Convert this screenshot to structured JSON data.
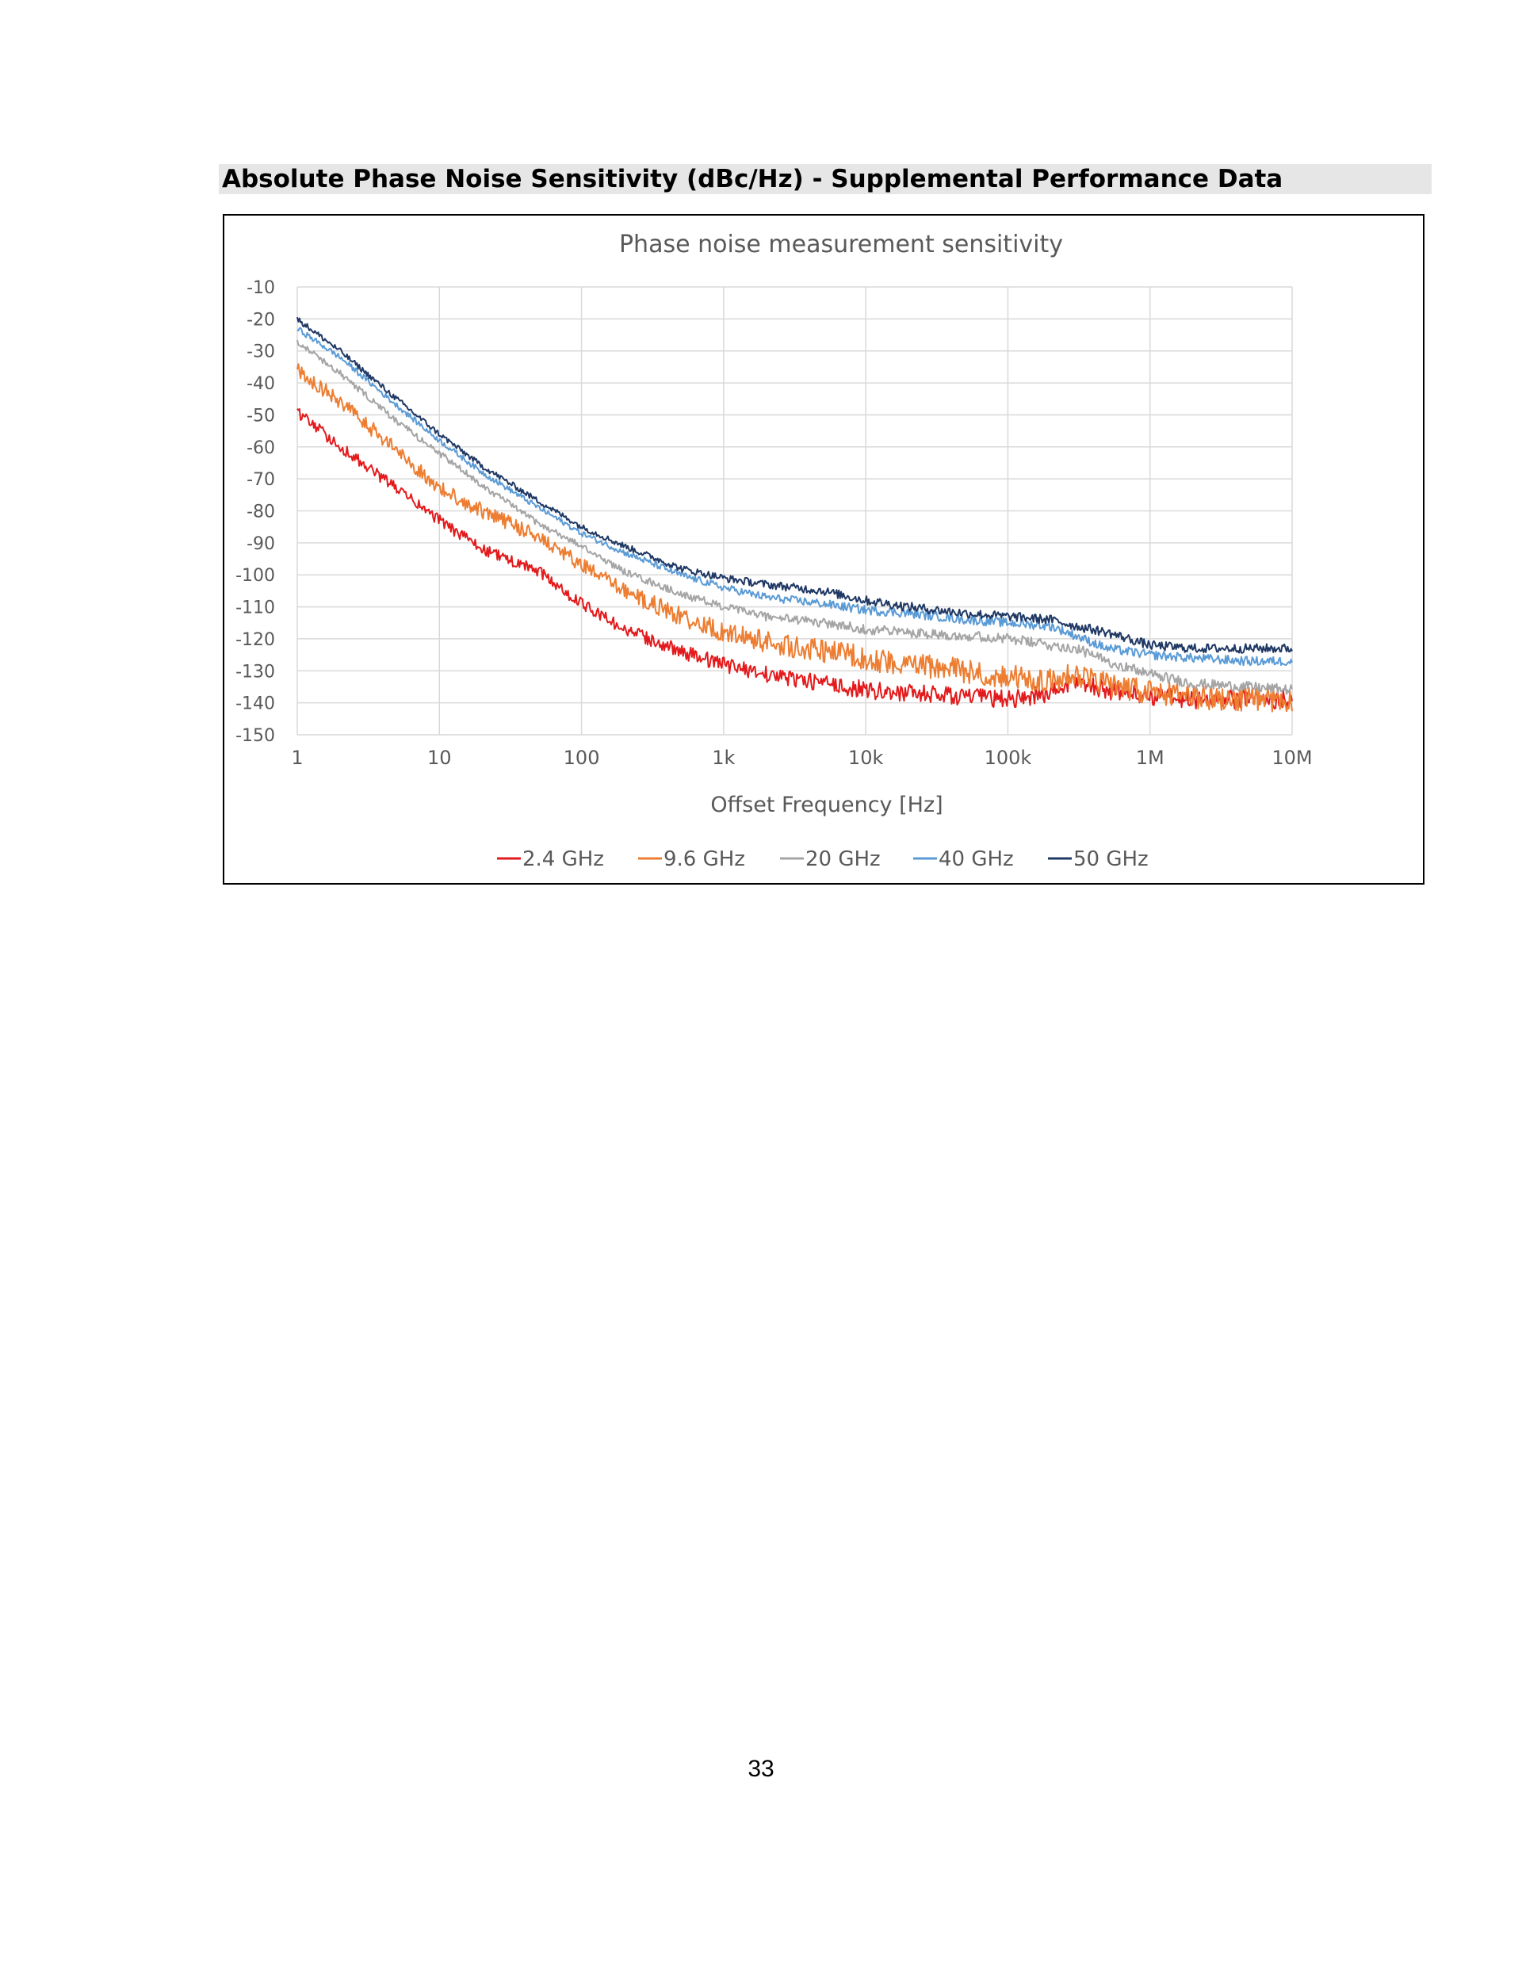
{
  "document": {
    "section_heading": "Absolute Phase Noise Sensitivity (dBc/Hz) - Supplemental Performance Data",
    "page_number": "33"
  },
  "chart_data": {
    "type": "line",
    "title": "Phase noise measurement sensitivity",
    "xlabel": "Offset Frequency [Hz]",
    "ylabel": "",
    "x_scale": "log",
    "xlim": [
      1,
      10000000
    ],
    "ylim": [
      -150,
      -10
    ],
    "x_ticks": [
      {
        "value": 1,
        "label": "1"
      },
      {
        "value": 10,
        "label": "10"
      },
      {
        "value": 100,
        "label": "100"
      },
      {
        "value": 1000,
        "label": "1k"
      },
      {
        "value": 10000,
        "label": "10k"
      },
      {
        "value": 100000,
        "label": "100k"
      },
      {
        "value": 1000000,
        "label": "1M"
      },
      {
        "value": 10000000,
        "label": "10M"
      }
    ],
    "y_ticks": [
      -10,
      -20,
      -30,
      -40,
      -50,
      -60,
      -70,
      -80,
      -90,
      -100,
      -110,
      -120,
      -130,
      -140,
      -150
    ],
    "grid": true,
    "legend_position": "bottom",
    "series": [
      {
        "name": "2.4 GHz",
        "color": "#e31a1c",
        "x": [
          1,
          2,
          5,
          10,
          20,
          50,
          100,
          200,
          500,
          1000,
          2000,
          5000,
          10000,
          20000,
          50000,
          100000,
          200000,
          300000,
          500000,
          1000000,
          2000000,
          5000000,
          10000000
        ],
        "y": [
          -49,
          -60,
          -73,
          -83,
          -92,
          -99,
          -109,
          -117,
          -124,
          -128,
          -131,
          -134,
          -136,
          -137,
          -138,
          -139,
          -137,
          -133,
          -136,
          -138,
          -139,
          -139,
          -139
        ]
      },
      {
        "name": "9.6 GHz",
        "color": "#ed7d31",
        "x": [
          1,
          2,
          5,
          10,
          20,
          50,
          100,
          200,
          500,
          1000,
          2000,
          5000,
          10000,
          20000,
          50000,
          100000,
          200000,
          300000,
          500000,
          1000000,
          2000000,
          5000000,
          10000000
        ],
        "y": [
          -36,
          -46,
          -61,
          -73,
          -80,
          -88,
          -97,
          -105,
          -113,
          -118,
          -121,
          -124,
          -126,
          -128,
          -130,
          -132,
          -133,
          -131,
          -134,
          -137,
          -138,
          -139,
          -139
        ]
      },
      {
        "name": "20 GHz",
        "color": "#a5a5a5",
        "x": [
          1,
          2,
          5,
          10,
          20,
          50,
          100,
          200,
          500,
          1000,
          2000,
          5000,
          10000,
          20000,
          50000,
          100000,
          200000,
          300000,
          500000,
          1000000,
          2000000,
          5000000,
          10000000
        ],
        "y": [
          -27,
          -37,
          -52,
          -62,
          -72,
          -84,
          -91,
          -99,
          -106,
          -110,
          -113,
          -115,
          -117,
          -118,
          -119,
          -120,
          -122,
          -123,
          -127,
          -131,
          -134,
          -135,
          -136
        ]
      },
      {
        "name": "40 GHz",
        "color": "#5b9bd5",
        "x": [
          1,
          2,
          5,
          10,
          20,
          50,
          100,
          200,
          500,
          1000,
          2000,
          5000,
          10000,
          20000,
          50000,
          100000,
          200000,
          300000,
          500000,
          1000000,
          2000000,
          5000000,
          10000000
        ],
        "y": [
          -23,
          -32,
          -47,
          -58,
          -68,
          -79,
          -87,
          -93,
          -100,
          -104,
          -107,
          -109,
          -111,
          -112,
          -114,
          -115,
          -116,
          -119,
          -123,
          -125,
          -126,
          -127,
          -127
        ]
      },
      {
        "name": "50 GHz",
        "color": "#1f3864",
        "x": [
          1,
          2,
          5,
          10,
          20,
          50,
          100,
          200,
          500,
          1000,
          2000,
          5000,
          10000,
          20000,
          50000,
          100000,
          200000,
          300000,
          500000,
          1000000,
          2000000,
          5000000,
          10000000
        ],
        "y": [
          -20,
          -30,
          -45,
          -56,
          -66,
          -77,
          -85,
          -91,
          -98,
          -101,
          -103,
          -105,
          -108,
          -110,
          -112,
          -113,
          -114,
          -116,
          -118,
          -122,
          -123,
          -123,
          -123
        ]
      }
    ]
  }
}
